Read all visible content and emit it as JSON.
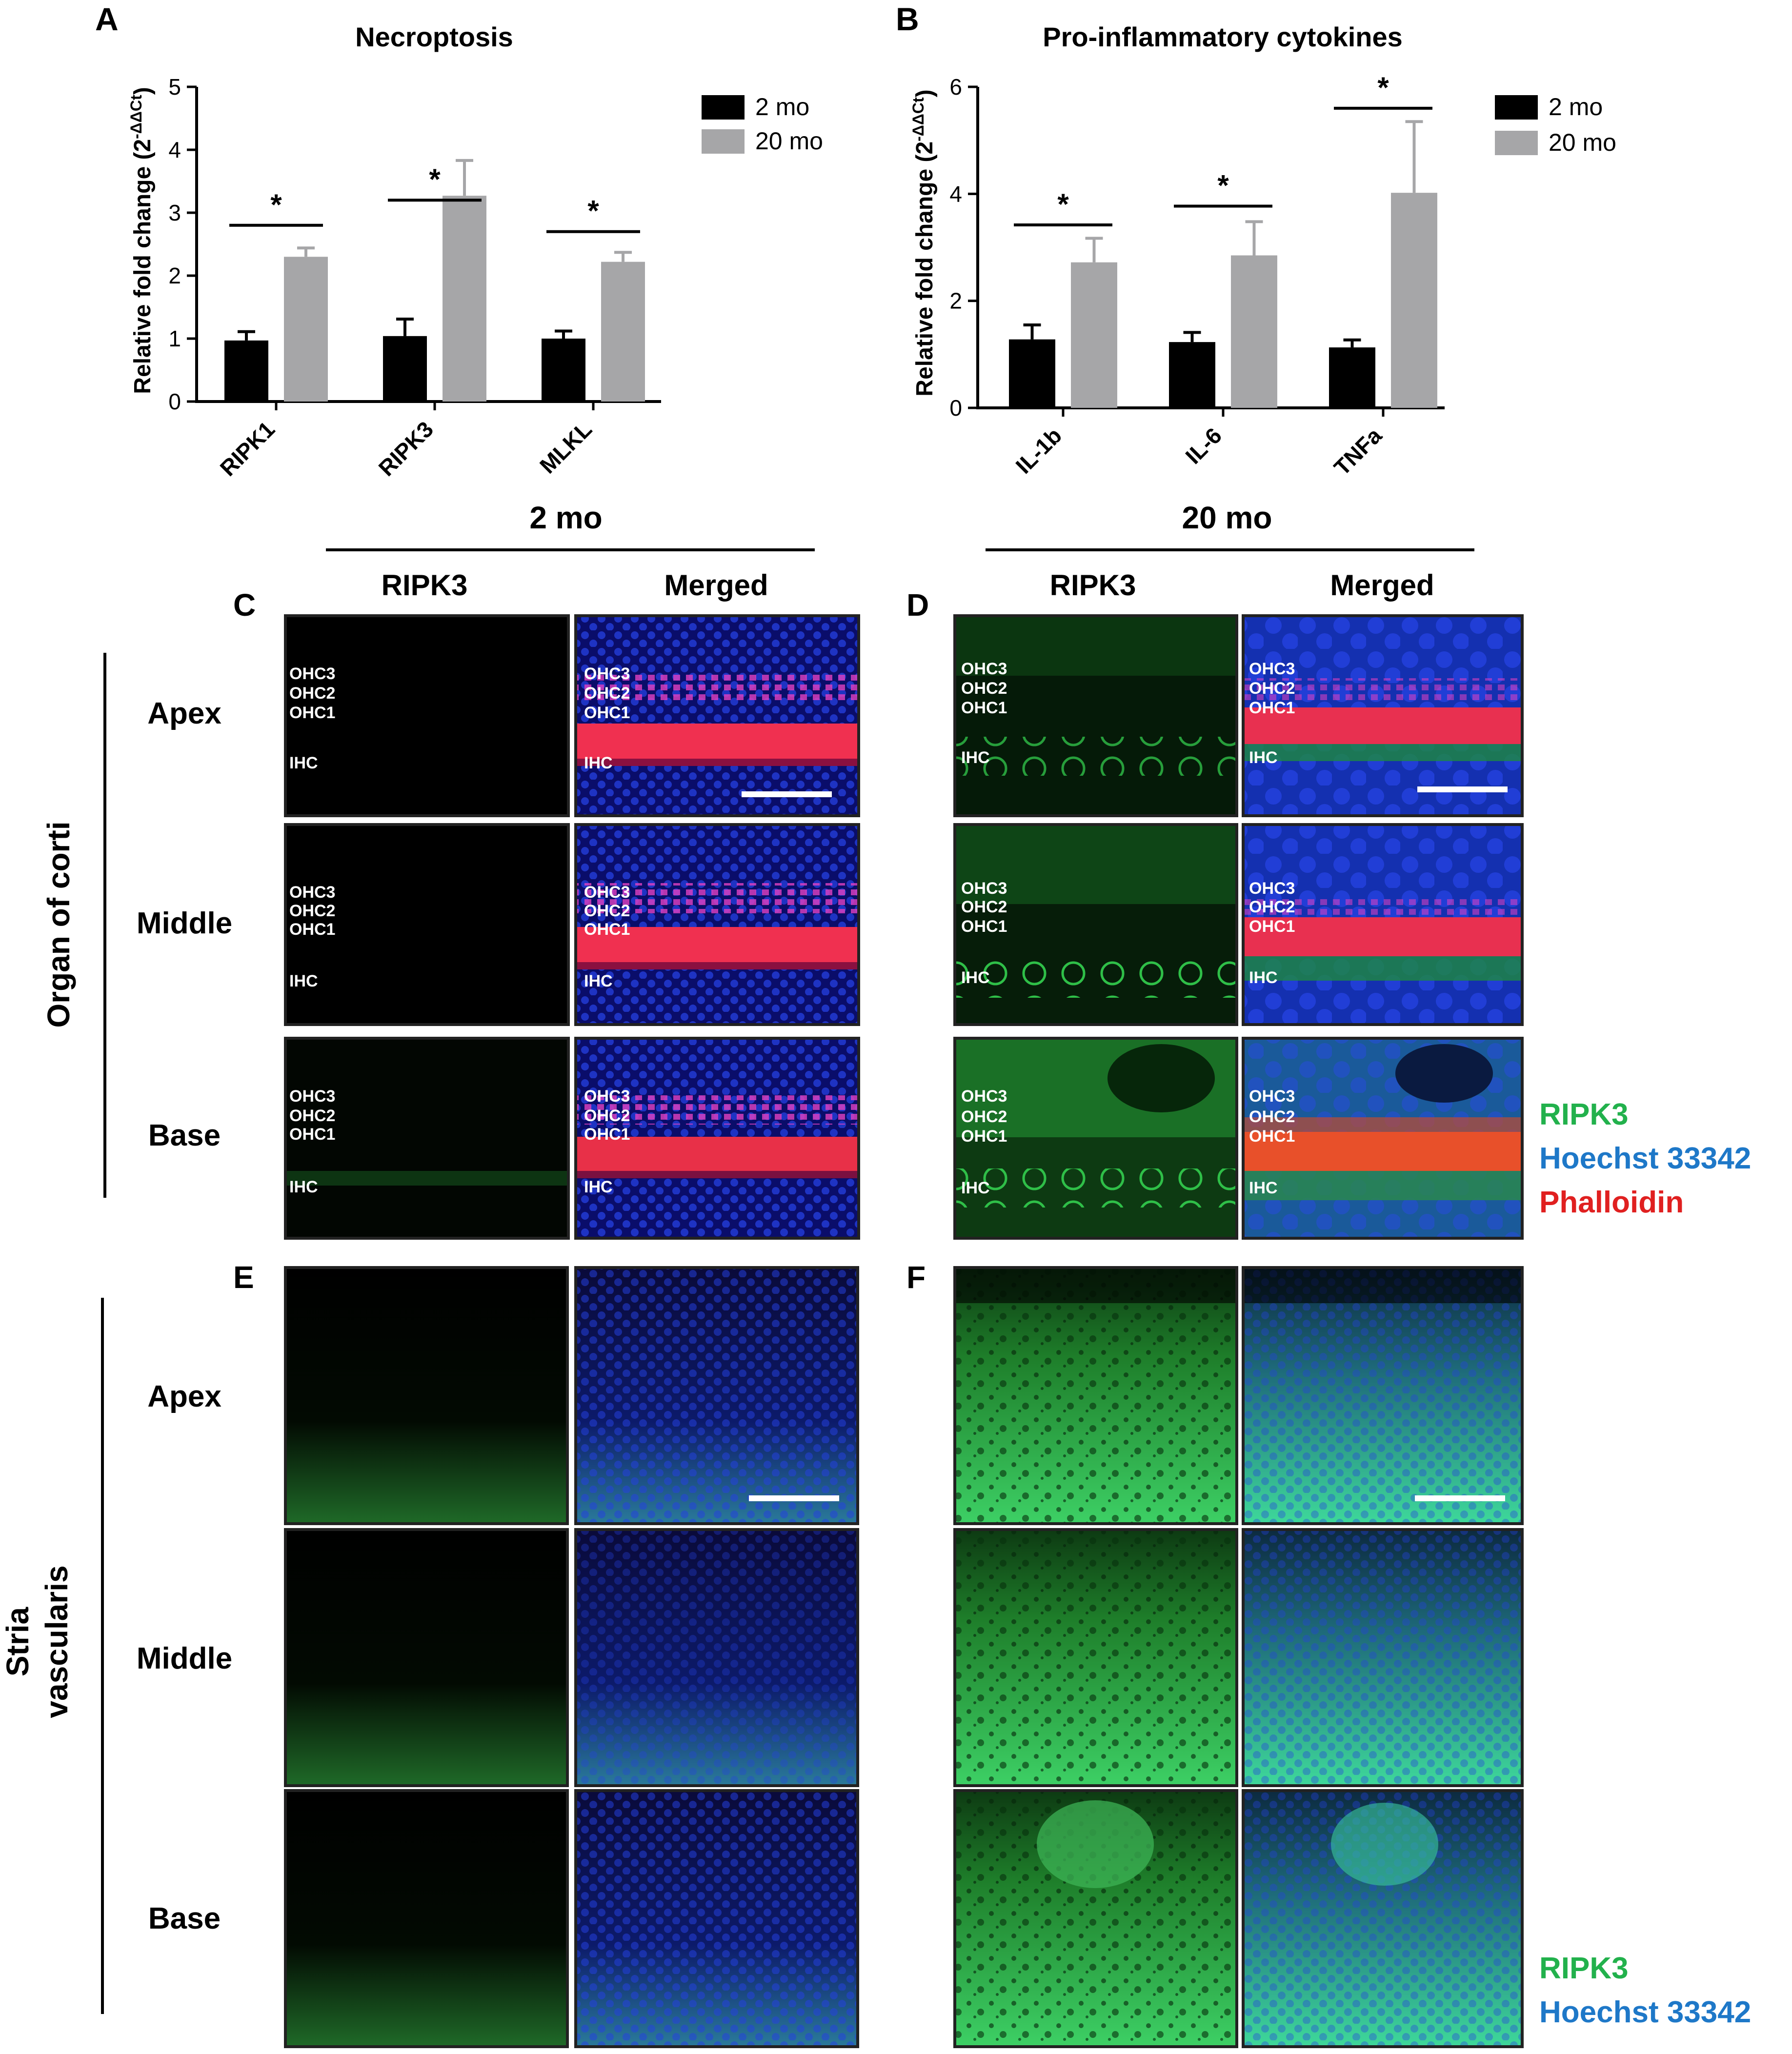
{
  "panel_letters": {
    "a": "A",
    "b": "B",
    "c": "C",
    "d": "D",
    "e": "E",
    "f": "F"
  },
  "chart_data": [
    {
      "type": "bar",
      "title": "Necroptosis",
      "ylabel": "Relative fold change (2",
      "ylabel_sup": "-ΔΔCt",
      "ylabel_close": ")",
      "ylim": [
        0,
        5
      ],
      "yticks": [
        0,
        1,
        2,
        3,
        4,
        5
      ],
      "categories": [
        "RIPK1",
        "RIPK3",
        "MLKL"
      ],
      "series": [
        {
          "name": "2 mo",
          "color": "#000000",
          "values": [
            0.97,
            1.04,
            1.0
          ],
          "errors": [
            0.14,
            0.27,
            0.12
          ]
        },
        {
          "name": "20 mo",
          "color": "#a6a6a8",
          "values": [
            2.3,
            3.27,
            2.22
          ],
          "errors": [
            0.14,
            0.56,
            0.15
          ]
        }
      ],
      "significance": [
        {
          "label": "*",
          "y": 2.8
        },
        {
          "label": "*",
          "y": 3.2
        },
        {
          "label": "*",
          "y": 2.7
        }
      ],
      "legend": "top-right",
      "grid": false
    },
    {
      "type": "bar",
      "title": "Pro-inflammatory cytokines",
      "ylabel": "Relative fold change (2",
      "ylabel_sup": "-ΔΔCt",
      "ylabel_close": ")",
      "ylim": [
        0,
        6
      ],
      "yticks": [
        0,
        2,
        4,
        6
      ],
      "categories": [
        "IL-1b",
        "IL-6",
        "TNFa"
      ],
      "series": [
        {
          "name": "2 mo",
          "color": "#000000",
          "values": [
            1.28,
            1.23,
            1.13
          ],
          "errors": [
            0.27,
            0.18,
            0.14
          ]
        },
        {
          "name": "20 mo",
          "color": "#a6a6a8",
          "values": [
            2.72,
            2.85,
            4.02
          ],
          "errors": [
            0.45,
            0.63,
            1.33
          ]
        }
      ],
      "significance": [
        {
          "label": "*",
          "y": 3.42
        },
        {
          "label": "*",
          "y": 3.77
        },
        {
          "label": "*",
          "y": 5.6
        }
      ],
      "legend": "top-right",
      "grid": false
    }
  ],
  "micro": {
    "group_2mo": "2 mo",
    "group_20mo": "20 mo",
    "col_ripk3": "RIPK3",
    "col_merged": "Merged",
    "section_organ": "Organ of corti",
    "section_stria_1": "Stria",
    "section_stria_2": "vascularis",
    "row_labels": [
      "Apex",
      "Middle",
      "Base"
    ],
    "cell_labels": {
      "ohc3": "OHC3",
      "ohc2": "OHC2",
      "ohc1": "OHC1",
      "ihc": "IHC"
    },
    "legend_organ": [
      {
        "label": "RIPK3",
        "color": "#22b14c"
      },
      {
        "label": "Hoechst  33342",
        "color": "#1e78c8"
      },
      {
        "label": "Phalloidin",
        "color": "#e02020"
      }
    ],
    "legend_stria": [
      {
        "label": "RIPK3",
        "color": "#22b14c"
      },
      {
        "label": "Hoechst  33342",
        "color": "#1e78c8"
      }
    ]
  }
}
